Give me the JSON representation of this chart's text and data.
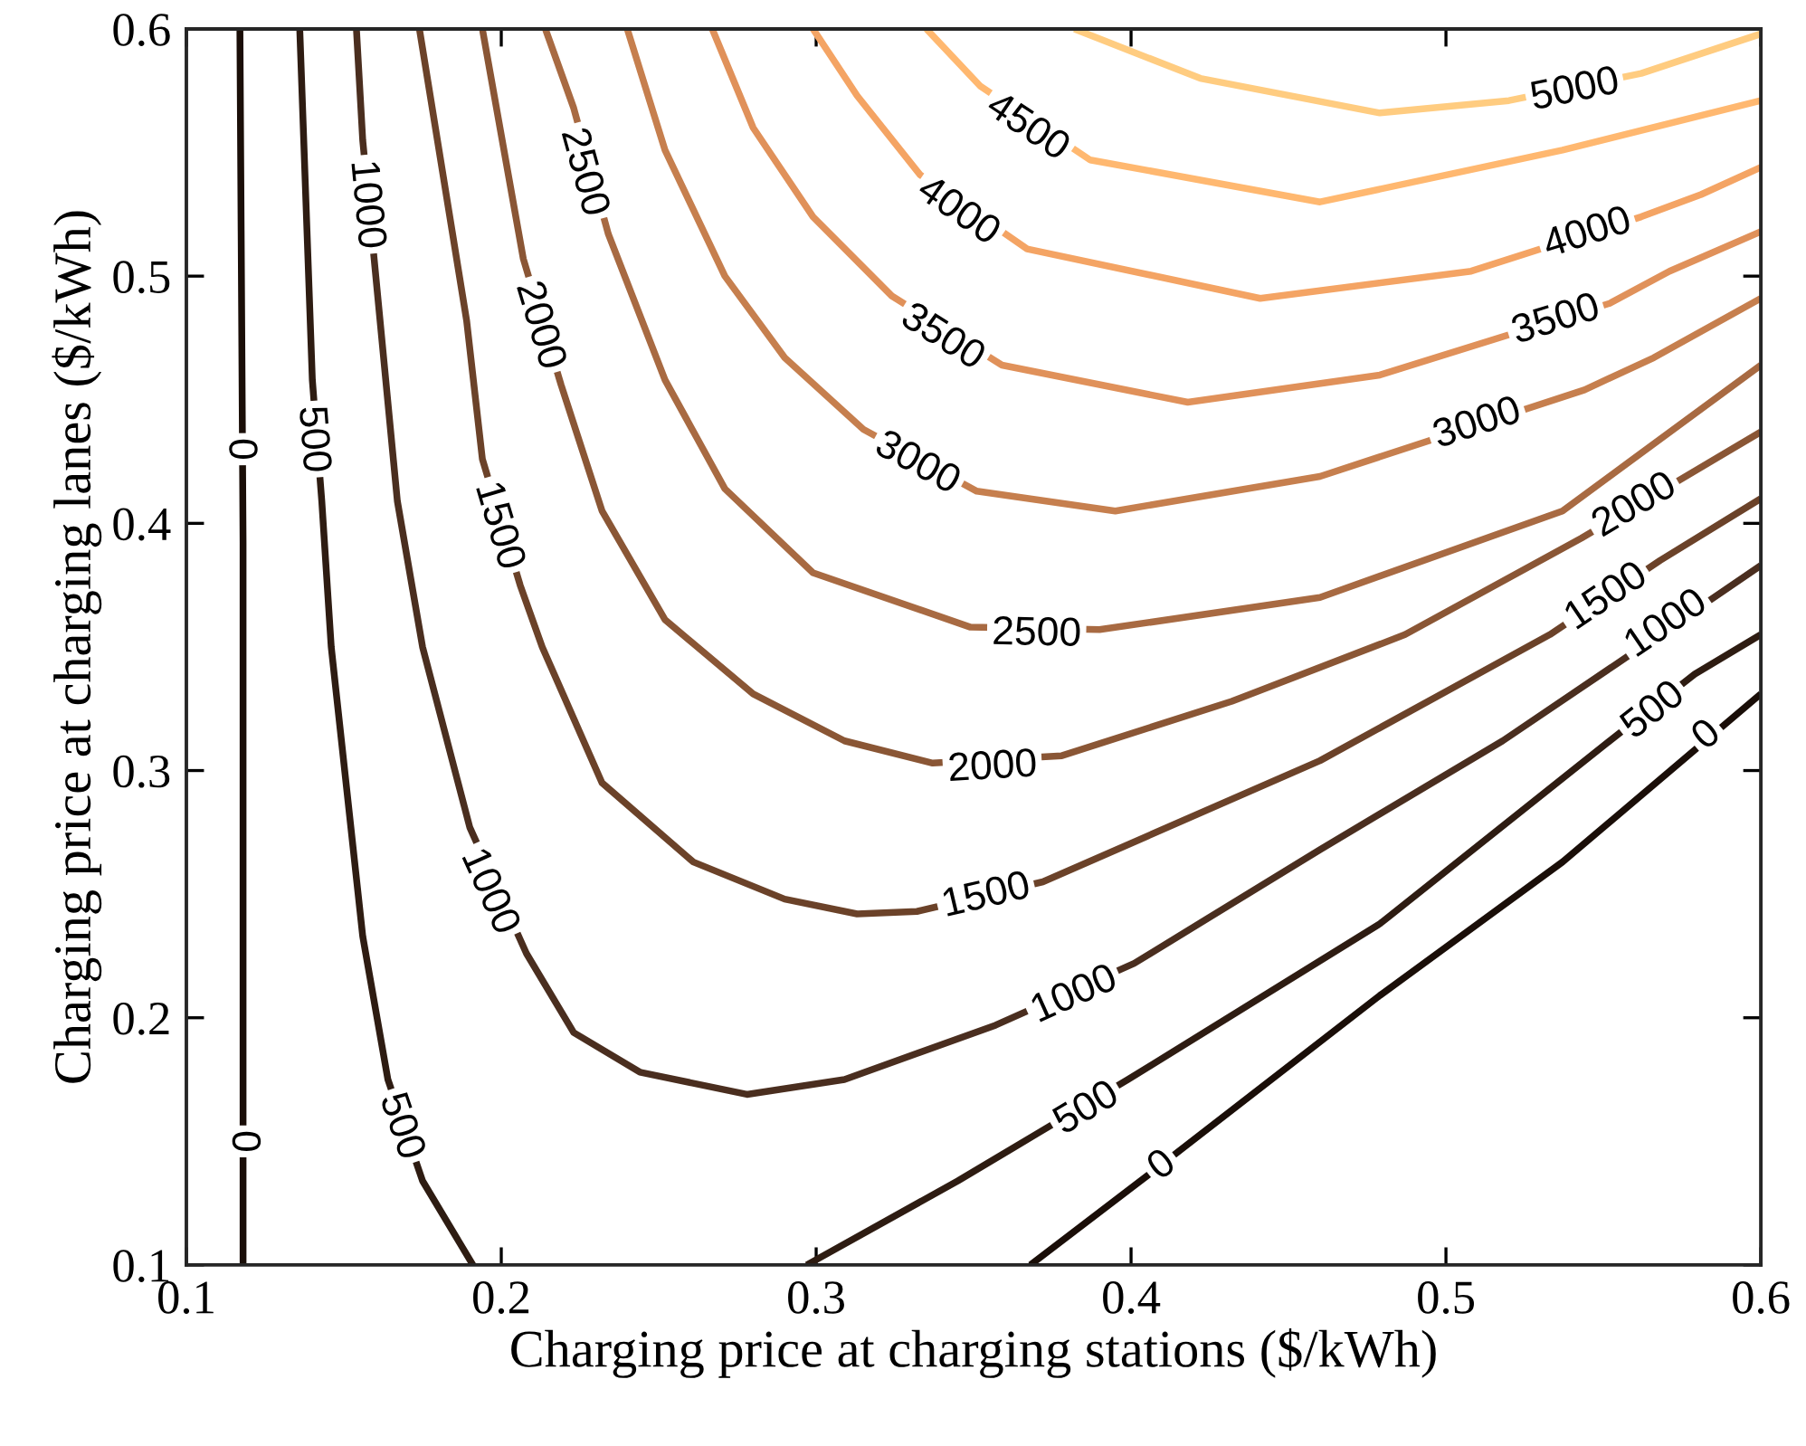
{
  "chart_data": {
    "type": "line",
    "xlabel": "Charging price at charging stations ($/kWh)",
    "ylabel": "Charging price at charging lanes ($/kWh)",
    "xlim": [
      0.1,
      0.6
    ],
    "ylim": [
      0.1,
      0.6
    ],
    "xticks": [
      0.1,
      0.2,
      0.3,
      0.4,
      0.5,
      0.6
    ],
    "yticks": [
      0.1,
      0.2,
      0.3,
      0.4,
      0.5,
      0.6
    ],
    "grid": false,
    "series": [
      {
        "color": "#1a0e08",
        "x": [
          0.117,
          0.118,
          0.118
        ],
        "values": [
          0.6,
          0.392,
          0.1
        ]
      },
      {
        "color": "#2e1c12",
        "x": [
          0.136,
          0.14,
          0.143,
          0.146,
          0.156,
          0.164,
          0.175,
          0.191
        ],
        "values": [
          0.6,
          0.458,
          0.409,
          0.35,
          0.233,
          0.175,
          0.134,
          0.1
        ]
      },
      {
        "color": "#4a2e1f",
        "x": [
          0.154,
          0.156,
          0.16,
          0.167,
          0.175,
          0.19,
          0.208,
          0.223,
          0.244,
          0.278,
          0.309,
          0.357,
          0.401,
          0.46,
          0.518,
          0.554,
          0.6
        ],
        "values": [
          0.6,
          0.555,
          0.502,
          0.409,
          0.35,
          0.277,
          0.226,
          0.194,
          0.178,
          0.169,
          0.175,
          0.197,
          0.222,
          0.268,
          0.312,
          0.343,
          0.383
        ]
      },
      {
        "color": "#6b4229",
        "x": [
          0.174,
          0.189,
          0.194,
          0.206,
          0.213,
          0.232,
          0.261,
          0.29,
          0.313,
          0.332,
          0.372,
          0.46,
          0.533,
          0.568,
          0.6
        ],
        "values": [
          0.6,
          0.482,
          0.426,
          0.375,
          0.35,
          0.295,
          0.263,
          0.248,
          0.242,
          0.243,
          0.255,
          0.304,
          0.355,
          0.385,
          0.41
        ]
      },
      {
        "color": "#8a5635",
        "x": [
          0.194,
          0.207,
          0.219,
          0.232,
          0.252,
          0.28,
          0.309,
          0.337,
          0.378,
          0.432,
          0.487,
          0.543,
          0.6
        ],
        "values": [
          0.6,
          0.507,
          0.456,
          0.405,
          0.361,
          0.331,
          0.312,
          0.303,
          0.306,
          0.328,
          0.355,
          0.394,
          0.437
        ]
      },
      {
        "color": "#a86a42",
        "x": [
          0.214,
          0.223,
          0.234,
          0.252,
          0.271,
          0.299,
          0.349,
          0.39,
          0.46,
          0.537,
          0.6
        ],
        "values": [
          0.6,
          0.568,
          0.517,
          0.458,
          0.414,
          0.38,
          0.358,
          0.357,
          0.37,
          0.405,
          0.464
        ]
      },
      {
        "color": "#c67f4e",
        "x": [
          0.24,
          0.252,
          0.271,
          0.29,
          0.315,
          0.351,
          0.395,
          0.46,
          0.544,
          0.566,
          0.6
        ],
        "values": [
          0.6,
          0.551,
          0.5,
          0.467,
          0.438,
          0.413,
          0.405,
          0.419,
          0.454,
          0.467,
          0.491
        ]
      },
      {
        "color": "#e0915a",
        "x": [
          0.267,
          0.28,
          0.299,
          0.324,
          0.359,
          0.418,
          0.479,
          0.552,
          0.571,
          0.6
        ],
        "values": [
          0.6,
          0.56,
          0.524,
          0.492,
          0.464,
          0.449,
          0.46,
          0.489,
          0.502,
          0.518
        ]
      },
      {
        "color": "#f4a464",
        "x": [
          0.299,
          0.313,
          0.333,
          0.367,
          0.441,
          0.508,
          0.562,
          0.581,
          0.6
        ],
        "values": [
          0.6,
          0.573,
          0.541,
          0.511,
          0.491,
          0.502,
          0.524,
          0.533,
          0.544
        ]
      },
      {
        "color": "#ffb870",
        "x": [
          0.335,
          0.352,
          0.387,
          0.46,
          0.537,
          0.6
        ],
        "values": [
          0.6,
          0.577,
          0.547,
          0.53,
          0.551,
          0.571
        ]
      },
      {
        "color": "#ffcc80",
        "x": [
          0.382,
          0.422,
          0.479,
          0.52,
          0.562,
          0.6
        ],
        "values": [
          0.6,
          0.58,
          0.566,
          0.571,
          0.582,
          0.598
        ]
      },
      {
        "color": "#2e1c12",
        "x": [
          0.297,
          0.345,
          0.37,
          0.399,
          0.479,
          0.552,
          0.579,
          0.6
        ],
        "values": [
          0.1,
          0.134,
          0.153,
          0.175,
          0.238,
          0.312,
          0.339,
          0.355
        ]
      },
      {
        "color": "#1a0e08",
        "x": [
          0.368,
          0.403,
          0.479,
          0.537,
          0.575,
          0.6
        ],
        "values": [
          0.1,
          0.134,
          0.209,
          0.263,
          0.304,
          0.331
        ]
      }
    ],
    "annotations": [
      {
        "text": "0",
        "x": 0.117,
        "y": 0.43
      },
      {
        "text": "0",
        "x": 0.118,
        "y": 0.15
      },
      {
        "text": "500",
        "x": 0.14,
        "y": 0.434
      },
      {
        "text": "500",
        "x": 0.168,
        "y": 0.156
      },
      {
        "text": "1000",
        "x": 0.157,
        "y": 0.529
      },
      {
        "text": "1000",
        "x": 0.196,
        "y": 0.251
      },
      {
        "text": "1000",
        "x": 0.382,
        "y": 0.209
      },
      {
        "text": "1000",
        "x": 0.57,
        "y": 0.359
      },
      {
        "text": "1500",
        "x": 0.199,
        "y": 0.399
      },
      {
        "text": "1500",
        "x": 0.354,
        "y": 0.249
      },
      {
        "text": "1500",
        "x": 0.551,
        "y": 0.37
      },
      {
        "text": "2000",
        "x": 0.212,
        "y": 0.48
      },
      {
        "text": "2000",
        "x": 0.356,
        "y": 0.301
      },
      {
        "text": "2000",
        "x": 0.56,
        "y": 0.407
      },
      {
        "text": "2500",
        "x": 0.226,
        "y": 0.542
      },
      {
        "text": "2500",
        "x": 0.37,
        "y": 0.355
      },
      {
        "text": "3000",
        "x": 0.332,
        "y": 0.424
      },
      {
        "text": "3000",
        "x": 0.51,
        "y": 0.44
      },
      {
        "text": "3500",
        "x": 0.34,
        "y": 0.475
      },
      {
        "text": "3500",
        "x": 0.535,
        "y": 0.482
      },
      {
        "text": "4000",
        "x": 0.345,
        "y": 0.526
      },
      {
        "text": "4000",
        "x": 0.545,
        "y": 0.517
      },
      {
        "text": "4500",
        "x": 0.367,
        "y": 0.56
      },
      {
        "text": "5000",
        "x": 0.541,
        "y": 0.575
      },
      {
        "text": "500",
        "x": 0.386,
        "y": 0.163
      },
      {
        "text": "500",
        "x": 0.566,
        "y": 0.324
      },
      {
        "text": "0",
        "x": 0.41,
        "y": 0.14
      },
      {
        "text": "0",
        "x": 0.583,
        "y": 0.314
      }
    ]
  }
}
